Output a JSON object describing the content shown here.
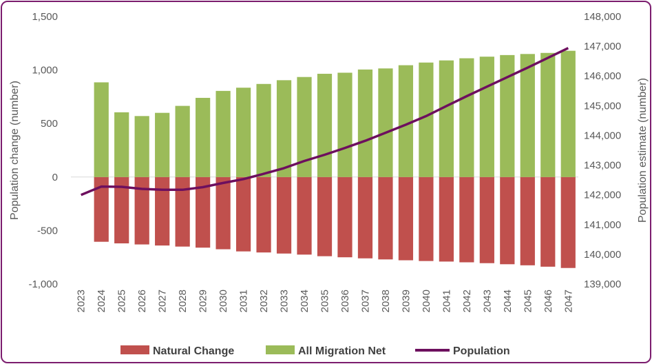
{
  "chart_data": {
    "type": "bar",
    "categories": [
      "2023",
      "2024",
      "2025",
      "2026",
      "2027",
      "2028",
      "2029",
      "2030",
      "2031",
      "2032",
      "2033",
      "2034",
      "2035",
      "2036",
      "2037",
      "2038",
      "2039",
      "2040",
      "2041",
      "2042",
      "2043",
      "2044",
      "2045",
      "2046",
      "2047"
    ],
    "series": [
      {
        "name": "Natural Change",
        "type": "bar",
        "axis": "left",
        "color": "#c0504d",
        "values": [
          0,
          -605,
          -620,
          -630,
          -640,
          -650,
          -660,
          -675,
          -695,
          -705,
          -715,
          -725,
          -740,
          -750,
          -760,
          -770,
          -778,
          -785,
          -790,
          -797,
          -805,
          -815,
          -825,
          -838,
          -850
        ]
      },
      {
        "name": "All Migration Net",
        "type": "bar",
        "axis": "left",
        "color": "#9bbb59",
        "values": [
          0,
          885,
          605,
          570,
          600,
          665,
          740,
          805,
          835,
          870,
          905,
          935,
          965,
          975,
          1005,
          1015,
          1045,
          1070,
          1090,
          1110,
          1125,
          1140,
          1150,
          1160,
          1180
        ]
      },
      {
        "name": "Population",
        "type": "line",
        "axis": "right",
        "color": "#6d0f5e",
        "values": [
          142000,
          142280,
          142270,
          142200,
          142170,
          142170,
          142260,
          142400,
          142530,
          142710,
          142900,
          143140,
          143350,
          143580,
          143820,
          144090,
          144360,
          144650,
          144990,
          145320,
          145640,
          145960,
          146280,
          146610,
          146940
        ]
      }
    ],
    "ylabel": "Population change (number)",
    "y2label": "Population estimate (number)",
    "ylim": [
      -1000,
      1500
    ],
    "y2lim": [
      139000,
      148000
    ],
    "yticks": [
      "-1,000",
      "-500",
      "0",
      "500",
      "1,000",
      "1,500"
    ],
    "y2ticks": [
      "139,000",
      "140,000",
      "141,000",
      "142,000",
      "143,000",
      "144,000",
      "145,000",
      "146,000",
      "147,000",
      "148,000"
    ],
    "legend": [
      "Natural Change",
      "All Migration Net",
      "Population"
    ],
    "legend_position": "bottom"
  }
}
